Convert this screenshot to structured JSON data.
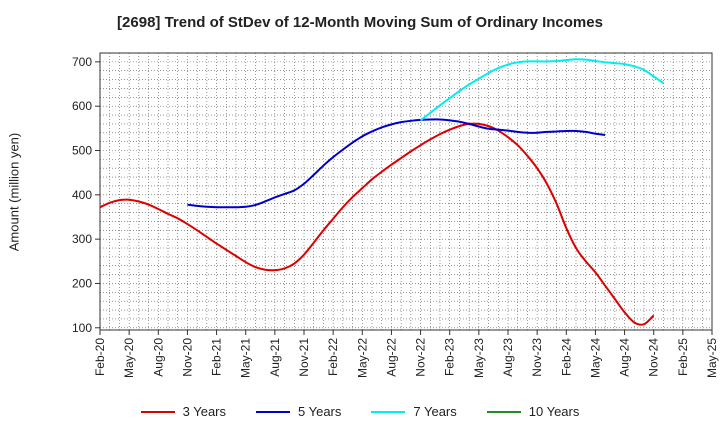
{
  "chart_data": {
    "type": "line",
    "title": "[2698]  Trend of StDev of 12-Month Moving Sum of Ordinary Incomes",
    "xlabel": "",
    "ylabel": "Amount (million yen)",
    "ylim": [
      95,
      720
    ],
    "yticks": [
      100,
      200,
      300,
      400,
      500,
      600,
      700
    ],
    "x_tick_labels": [
      "Feb-20",
      "May-20",
      "Aug-20",
      "Nov-20",
      "Feb-21",
      "May-21",
      "Aug-21",
      "Nov-21",
      "Feb-22",
      "May-22",
      "Aug-22",
      "Nov-22",
      "Feb-23",
      "May-23",
      "Aug-23",
      "Nov-23",
      "Feb-24",
      "May-24",
      "Aug-24",
      "Nov-24",
      "Feb-25",
      "May-25"
    ],
    "grid": true,
    "legend_position": "bottom",
    "series": [
      {
        "name": "3 Years",
        "color": "#dd0000",
        "x": [
          0,
          1,
          2,
          3,
          4,
          5,
          6,
          7,
          8,
          9,
          10,
          11,
          12,
          13,
          14,
          15,
          16,
          17,
          18,
          19,
          20,
          21,
          22,
          23,
          24,
          25,
          26,
          27,
          28,
          29,
          30,
          31,
          32,
          33,
          34,
          35,
          36,
          37,
          38,
          39,
          40,
          41,
          42,
          43,
          44,
          45,
          46,
          47,
          48,
          49,
          50,
          51,
          52,
          53,
          54,
          55,
          56,
          57,
          58,
          59,
          60
        ],
        "values": [
          372,
          382,
          388,
          389,
          385,
          378,
          368,
          357,
          347,
          334,
          320,
          305,
          290,
          276,
          262,
          248,
          237,
          231,
          230,
          234,
          245,
          265,
          292,
          320,
          346,
          372,
          395,
          415,
          435,
          452,
          468,
          483,
          498,
          512,
          525,
          537,
          547,
          555,
          560,
          560,
          555,
          545,
          530,
          512,
          488,
          460,
          425,
          380,
          325,
          280,
          250,
          225,
          195,
          165,
          135,
          112,
          108,
          128,
          null,
          null,
          null
        ]
      },
      {
        "name": "5 Years",
        "color": "#0000cc",
        "x": [
          0,
          1,
          2,
          3,
          4,
          5,
          6,
          7,
          8,
          9,
          10,
          11,
          12,
          13,
          14,
          15,
          16,
          17,
          18,
          19,
          20,
          21,
          22,
          23,
          24,
          25,
          26,
          27,
          28,
          29,
          30,
          31,
          32,
          33,
          34,
          35,
          36,
          37,
          38,
          39,
          40,
          41,
          42,
          43,
          44,
          45,
          46,
          47,
          48,
          49,
          50,
          51,
          52,
          53,
          54,
          55,
          56,
          57,
          58,
          59,
          60
        ],
        "values": [
          null,
          null,
          null,
          null,
          null,
          null,
          null,
          null,
          null,
          378,
          375,
          373,
          372,
          372,
          372,
          373,
          377,
          385,
          394,
          402,
          410,
          425,
          445,
          466,
          485,
          502,
          518,
          532,
          543,
          552,
          559,
          564,
          567,
          569,
          570,
          570,
          568,
          565,
          560,
          554,
          549,
          547,
          545,
          542,
          540,
          540,
          542,
          543,
          544,
          544,
          542,
          538,
          535,
          null,
          null,
          null,
          null,
          null,
          null,
          null,
          null
        ]
      },
      {
        "name": "7 Years",
        "color": "#00eeee",
        "x": [
          0,
          1,
          2,
          3,
          4,
          5,
          6,
          7,
          8,
          9,
          10,
          11,
          12,
          13,
          14,
          15,
          16,
          17,
          18,
          19,
          20,
          21,
          22,
          23,
          24,
          25,
          26,
          27,
          28,
          29,
          30,
          31,
          32,
          33,
          34,
          35,
          36,
          37,
          38,
          39,
          40,
          41,
          42,
          43,
          44,
          45,
          46,
          47,
          48,
          49,
          50,
          51,
          52,
          53,
          54,
          55,
          56,
          57,
          58,
          59,
          60
        ],
        "values": [
          null,
          null,
          null,
          null,
          null,
          null,
          null,
          null,
          null,
          null,
          null,
          null,
          null,
          null,
          null,
          null,
          null,
          null,
          null,
          null,
          null,
          null,
          null,
          null,
          null,
          null,
          null,
          null,
          null,
          null,
          null,
          null,
          null,
          568,
          585,
          602,
          618,
          634,
          649,
          662,
          675,
          686,
          694,
          699,
          701,
          701,
          701,
          702,
          704,
          706,
          705,
          702,
          699,
          697,
          695,
          690,
          682,
          667,
          652,
          null,
          null
        ]
      },
      {
        "name": "10 Years",
        "color": "#228b22",
        "x": [],
        "values": []
      }
    ]
  }
}
